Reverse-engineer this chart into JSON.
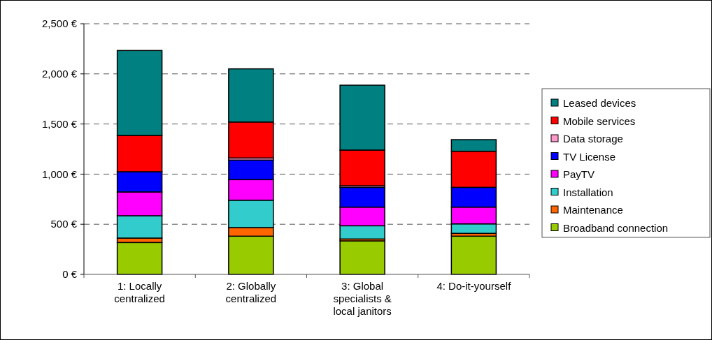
{
  "chart_data": {
    "type": "bar",
    "stacked": true,
    "categories": [
      "1: Locally centralized",
      "2: Globally centralized",
      "3: Global specialists & local janitors",
      "4: Do-it-yourself"
    ],
    "series": [
      {
        "name": "Broadband connection",
        "color": "#99cc00",
        "values": [
          318,
          381,
          334,
          381
        ]
      },
      {
        "name": "Maintenance",
        "color": "#ff6600",
        "values": [
          44,
          86,
          19,
          28
        ]
      },
      {
        "name": "Installation",
        "color": "#33cccc",
        "values": [
          223,
          273,
          132,
          95
        ]
      },
      {
        "name": "PayTV",
        "color": "#ff00ff",
        "values": [
          237,
          205,
          186,
          167
        ]
      },
      {
        "name": "TV License",
        "color": "#0000ff",
        "values": [
          202,
          195,
          197,
          197
        ]
      },
      {
        "name": "Data storage",
        "color": "#ff99cc",
        "values": [
          0,
          21,
          16,
          0
        ]
      },
      {
        "name": "Mobile services",
        "color": "#ff0000",
        "values": [
          362,
          359,
          356,
          360
        ]
      },
      {
        "name": "Leased devices",
        "color": "#008080",
        "values": [
          847,
          530,
          647,
          116
        ]
      }
    ],
    "ylim": [
      0,
      2500
    ],
    "yticks": [
      {
        "value": 0,
        "label": "0 €"
      },
      {
        "value": 500,
        "label": "500 €"
      },
      {
        "value": 1000,
        "label": "1,000 €"
      },
      {
        "value": 1500,
        "label": "1,500 €"
      },
      {
        "value": 2000,
        "label": "2,000 €"
      },
      {
        "value": 2500,
        "label": "2,500 €"
      }
    ],
    "grid": "y",
    "legend": "right"
  }
}
